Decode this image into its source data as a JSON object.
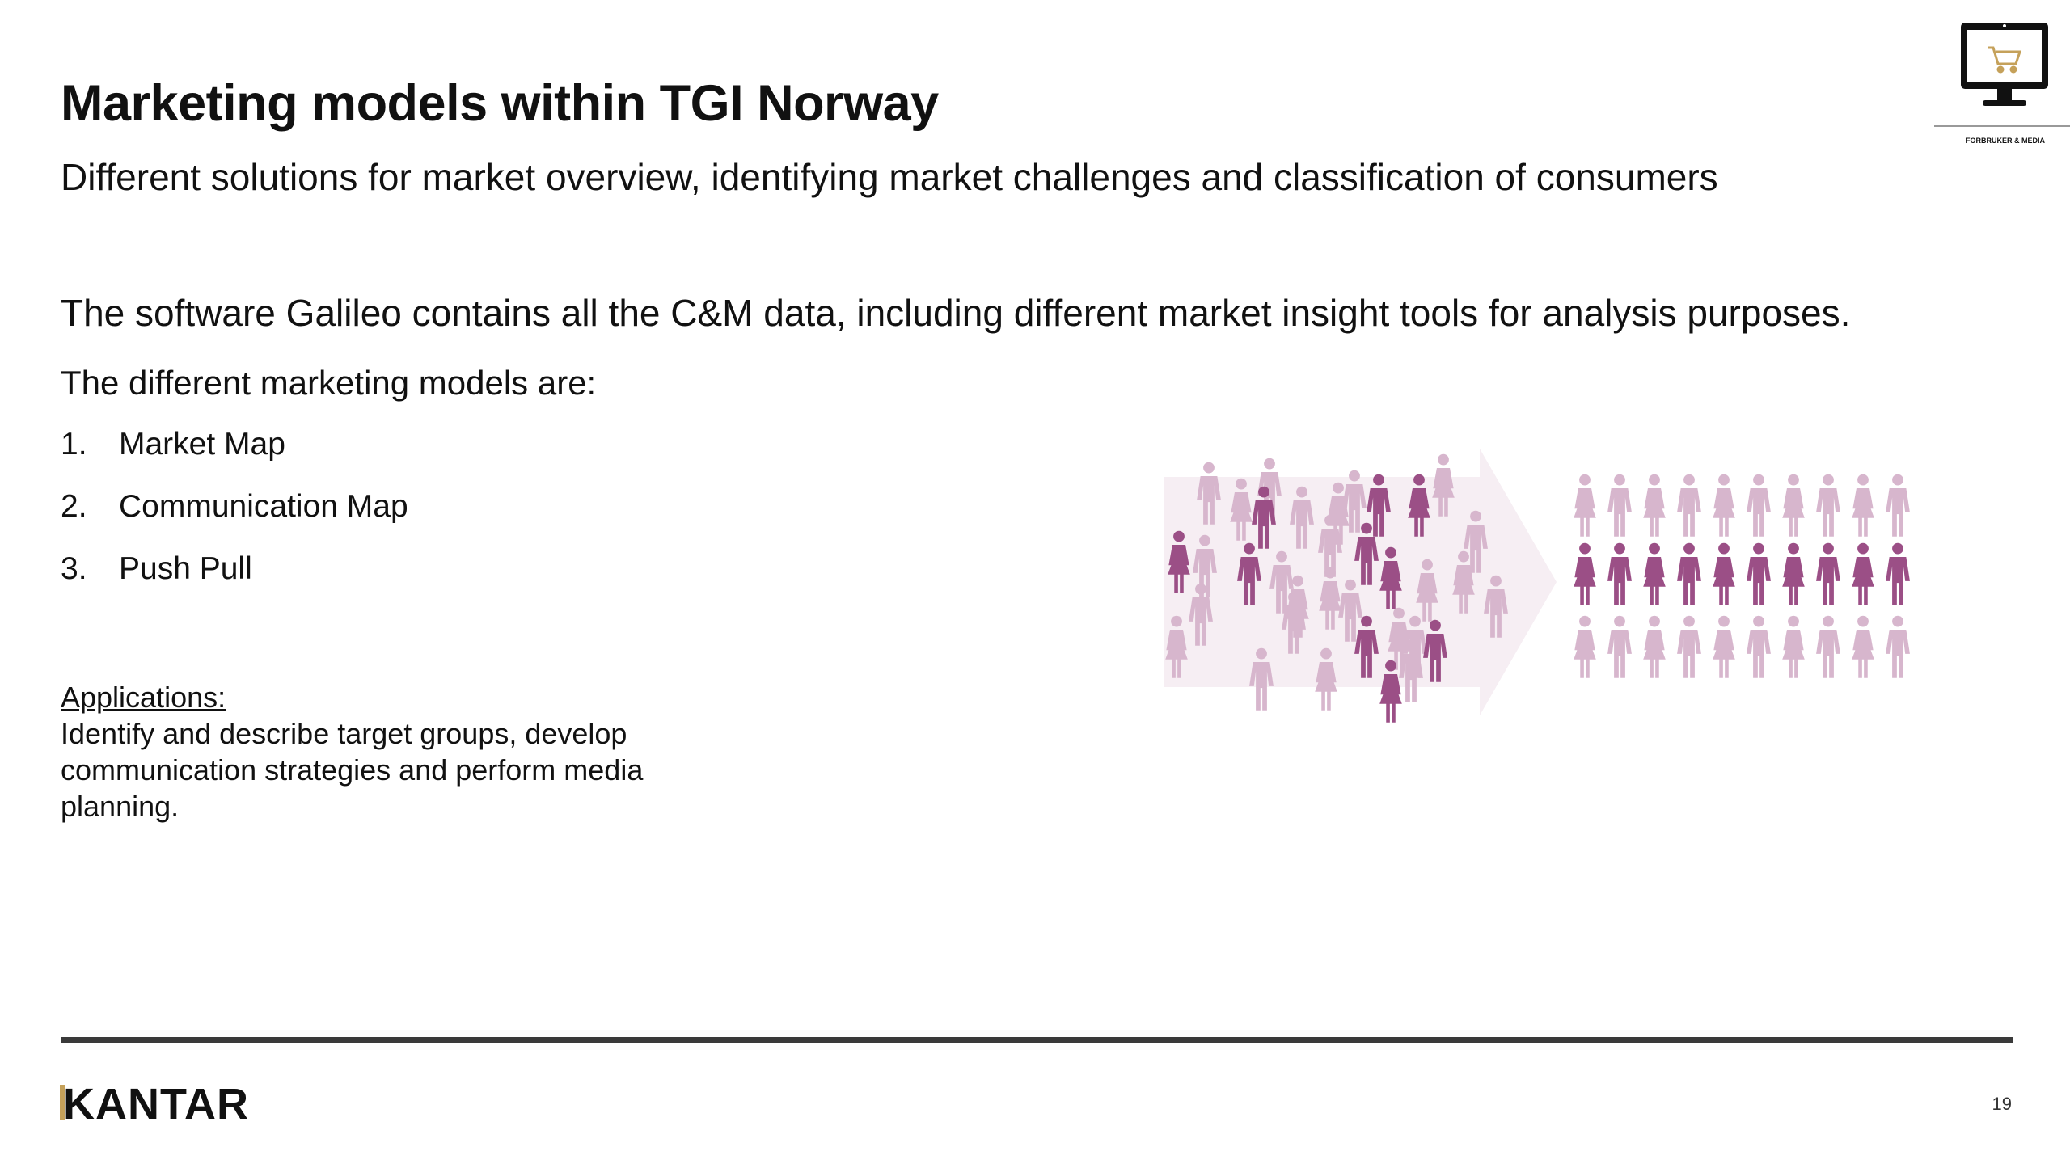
{
  "slide": {
    "title": "Marketing models within TGI Norway",
    "subtitle": "Different solutions for market overview, identifying market challenges and classification of consumers",
    "intro": "The software Galileo contains all the C&M data, including different market insight tools for analysis purposes.",
    "models_heading": "The different marketing models are:",
    "models": [
      {
        "num": "1.",
        "label": "Market Map"
      },
      {
        "num": "2.",
        "label": "Communication Map"
      },
      {
        "num": "3.",
        "label": "Push Pull"
      }
    ],
    "applications": {
      "title": "Applications:",
      "body": "Identify and describe target groups, develop communication strategies and perform media planning."
    },
    "page_number": "19"
  },
  "branding": {
    "footer_logo": "KANTAR",
    "corner_logo_text": "FORBRUKER & MEDIA",
    "accent_gold": "#c5a15a"
  },
  "illustration": {
    "name": "people-grouping",
    "colors": {
      "light": "#d7b6cd",
      "dark": "#9b4f86",
      "arrow": "#f6eef3"
    }
  }
}
